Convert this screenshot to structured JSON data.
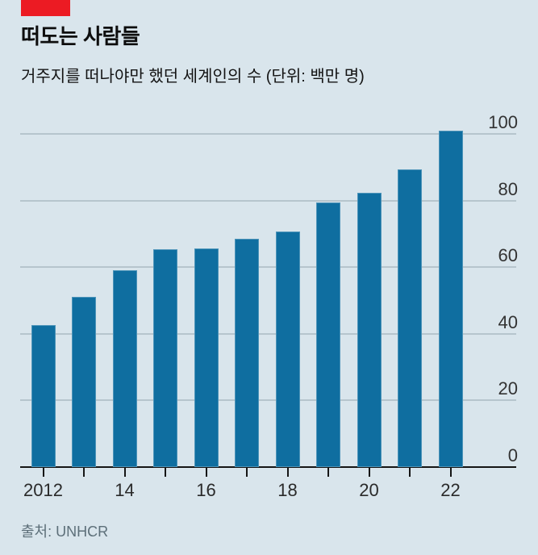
{
  "header": {
    "title": "떠도는 사람들",
    "subtitle": "거주지를 떠나야만 했던 세계인의 수 (단위: 백만 명)"
  },
  "footer": {
    "source": "출처: UNHCR"
  },
  "colors": {
    "background": "#d9e5ec",
    "accent_red": "#ec1b23",
    "bar": "#0f6ea0",
    "gridline": "#b6c5cd",
    "axis": "#151515",
    "axis_label": "#333333",
    "source_text": "#5d6f79"
  },
  "chart_data": {
    "type": "bar",
    "title": "떠도는 사람들",
    "subtitle": "거주지를 떠나야만 했던 세계인의 수 (단위: 백만 명)",
    "unit": "백만 명",
    "categories": [
      "2012",
      "2013",
      "2014",
      "2015",
      "2016",
      "2017",
      "2018",
      "2019",
      "2020",
      "2021",
      "2022"
    ],
    "values": [
      42.7,
      51.2,
      59.2,
      65.3,
      65.6,
      68.5,
      70.8,
      79.5,
      82.4,
      89.3,
      101
    ],
    "x_tick_labels": [
      "2012",
      "14",
      "16",
      "18",
      "20",
      "22"
    ],
    "x_tick_label_positions": [
      0,
      2,
      4,
      6,
      8,
      10
    ],
    "y_ticks": [
      0,
      20,
      40,
      60,
      80,
      100
    ],
    "ylim": [
      0,
      105
    ],
    "grid": true,
    "y_axis_side": "right",
    "legend": "none",
    "source": "출처: UNHCR"
  }
}
